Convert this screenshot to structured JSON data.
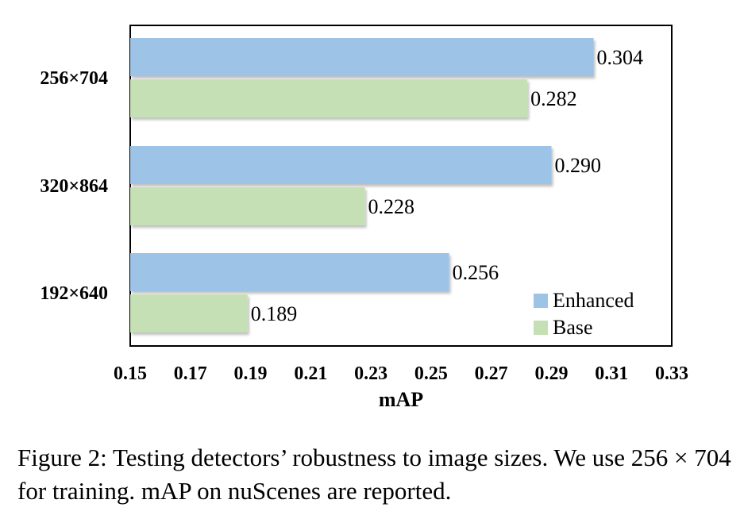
{
  "chart_data": {
    "type": "bar",
    "orientation": "horizontal",
    "categories": [
      "256×704",
      "320×864",
      "192×640"
    ],
    "series": [
      {
        "name": "Enhanced",
        "color": "#9dc3e6",
        "values": [
          0.304,
          0.29,
          0.256
        ],
        "labels": [
          "0.304",
          "0.290",
          "0.256"
        ]
      },
      {
        "name": "Base",
        "color": "#c5e0b4",
        "values": [
          0.282,
          0.228,
          0.189
        ],
        "labels": [
          "0.282",
          "0.228",
          "0.189"
        ]
      }
    ],
    "xlabel": "mAP",
    "xlim": [
      0.15,
      0.33
    ],
    "xticks": [
      0.15,
      0.17,
      0.19,
      0.21,
      0.23,
      0.25,
      0.27,
      0.29,
      0.31,
      0.33
    ],
    "xtick_labels": [
      "0.15",
      "0.17",
      "0.19",
      "0.21",
      "0.23",
      "0.25",
      "0.27",
      "0.29",
      "0.31",
      "0.33"
    ],
    "grid": false,
    "legend_position": "bottom-right"
  },
  "caption": "Figure 2: Testing detectors’ robustness to image sizes. We use 256 × 704 for training. mAP on nuScenes are reported."
}
